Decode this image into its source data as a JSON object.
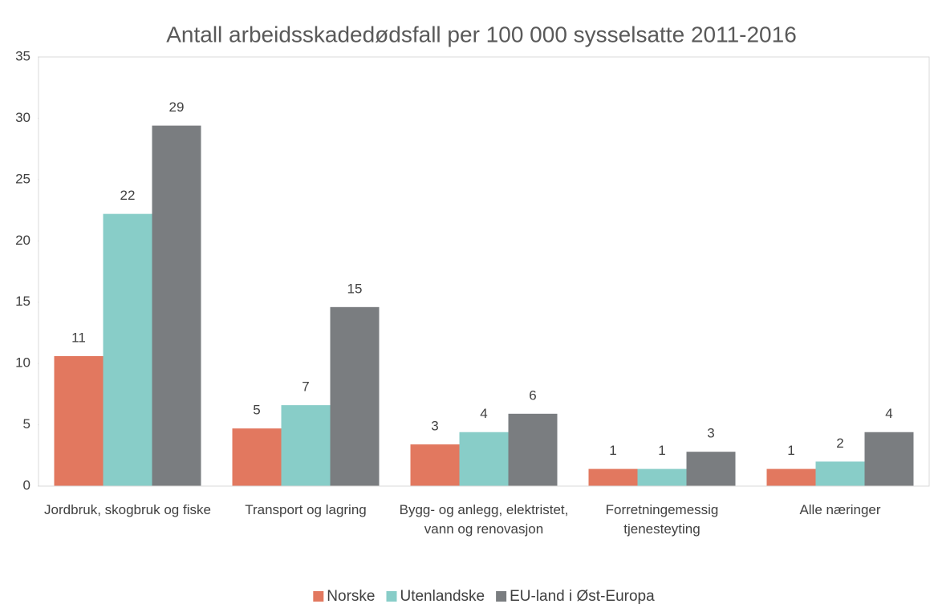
{
  "chart_data": {
    "type": "bar",
    "title": "Antall arbeidsskadedødsfall per 100 000 sysselsatte 2011-2016",
    "categories": [
      "Jordbruk, skogbruk og fiske",
      "Transport og lagring",
      "Bygg- og anlegg, elektristet, vann og renovasjon",
      "Forretningemessig tjenesteyting",
      "Alle næringer"
    ],
    "series": [
      {
        "name": "Norske",
        "color": "#e2785f",
        "values": [
          10.6,
          4.7,
          3.4,
          1.4,
          1.4
        ],
        "value_labels": [
          "11",
          "5",
          "3",
          "1",
          "1"
        ]
      },
      {
        "name": "Utenlandske",
        "color": "#88cdc8",
        "values": [
          22.2,
          6.6,
          4.4,
          1.4,
          2.0
        ],
        "value_labels": [
          "22",
          "7",
          "4",
          "1",
          "2"
        ]
      },
      {
        "name": "EU-land i Øst-Europa",
        "color": "#7a7d80",
        "values": [
          29.4,
          14.6,
          5.9,
          2.8,
          4.4
        ],
        "value_labels": [
          "29",
          "15",
          "6",
          "3",
          "4"
        ]
      }
    ],
    "ylim": [
      0,
      35
    ],
    "yticks": [
      0,
      5,
      10,
      15,
      20,
      25,
      30,
      35
    ],
    "grid": false,
    "legend": "bottom"
  }
}
